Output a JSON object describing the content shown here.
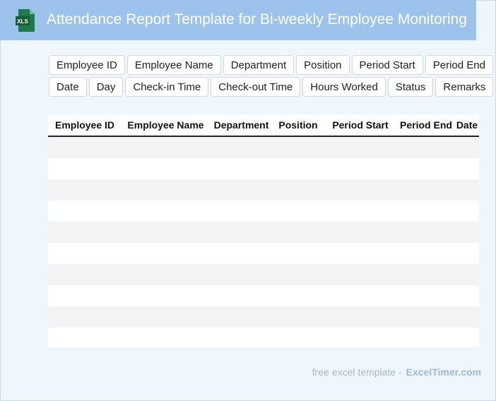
{
  "header": {
    "title": "Attendance Report Template for Bi-weekly Employee Monitoring",
    "icon": {
      "name": "xls-file-icon",
      "label": "XLS",
      "color": "#1e7145"
    }
  },
  "chips": {
    "row1": [
      "Employee ID",
      "Employee Name",
      "Department",
      "Position",
      "Period Start",
      "Period End"
    ],
    "row2": [
      "Date",
      "Day",
      "Check-in Time",
      "Check-out Time",
      "Hours Worked",
      "Status",
      "Remarks"
    ]
  },
  "table": {
    "columns": [
      "Employee ID",
      "Employee Name",
      "Department",
      "Position",
      "Period Start",
      "Period End",
      "Date"
    ],
    "empty_rows": 10
  },
  "footer": {
    "prefix": "free excel template -",
    "brand": "ExcelTimer.com"
  },
  "colors": {
    "header_bg": "#9cc3ec",
    "page_bg": "#f0f6fe",
    "row_stripe": "#f3f3f3"
  }
}
